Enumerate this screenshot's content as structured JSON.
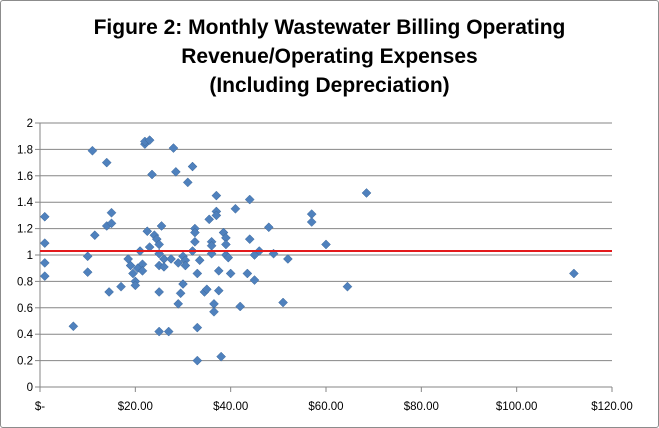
{
  "chart_data": {
    "type": "scatter",
    "title_lines": [
      "Figure 2: Monthly Wastewater Billing Operating",
      "Revenue/Operating Expenses",
      "(Including Depreciation)"
    ],
    "xlabel": "",
    "ylabel": "",
    "xlim": [
      0,
      120
    ],
    "ylim": [
      0,
      2
    ],
    "x_ticks": [
      0,
      20,
      40,
      60,
      80,
      100,
      120
    ],
    "x_tick_labels": [
      "$-",
      "$20.00",
      "$40.00",
      "$60.00",
      "$80.00",
      "$100.00",
      "$120.00"
    ],
    "y_ticks": [
      0,
      0.2,
      0.4,
      0.6,
      0.8,
      1,
      1.2,
      1.4,
      1.6,
      1.8,
      2
    ],
    "y_tick_labels": [
      "0",
      "0.2",
      "0.4",
      "0.6",
      "0.8",
      "1",
      "1.2",
      "1.4",
      "1.6",
      "1.8",
      "2"
    ],
    "grid": "horizontal",
    "marker_color": "#4f81bd",
    "reference_line": {
      "y": 1.03,
      "color": "#e31a1c"
    },
    "points": [
      [
        1,
        1.29
      ],
      [
        1,
        1.09
      ],
      [
        1,
        0.94
      ],
      [
        1,
        0.84
      ],
      [
        7,
        0.46
      ],
      [
        10,
        0.99
      ],
      [
        10,
        0.87
      ],
      [
        11,
        1.79
      ],
      [
        11.5,
        1.15
      ],
      [
        14,
        1.7
      ],
      [
        14,
        1.22
      ],
      [
        14.5,
        0.72
      ],
      [
        15,
        1.32
      ],
      [
        15,
        1.24
      ],
      [
        17,
        0.76
      ],
      [
        18.5,
        0.97
      ],
      [
        19,
        0.92
      ],
      [
        19.5,
        0.86
      ],
      [
        20,
        0.8
      ],
      [
        20,
        0.77
      ],
      [
        20.5,
        0.9
      ],
      [
        21,
        1.03
      ],
      [
        21.5,
        0.93
      ],
      [
        21.5,
        0.88
      ],
      [
        22,
        1.84
      ],
      [
        22,
        1.86
      ],
      [
        23,
        1.87
      ],
      [
        22.5,
        1.18
      ],
      [
        23,
        1.06
      ],
      [
        23.5,
        1.61
      ],
      [
        24,
        1.15
      ],
      [
        24.5,
        1.12
      ],
      [
        25,
        1.08
      ],
      [
        25,
        1.01
      ],
      [
        25,
        0.92
      ],
      [
        25,
        0.72
      ],
      [
        25,
        0.42
      ],
      [
        25.5,
        1.22
      ],
      [
        26,
        0.97
      ],
      [
        26,
        0.91
      ],
      [
        27,
        0.42
      ],
      [
        27.5,
        0.97
      ],
      [
        28,
        1.81
      ],
      [
        28.5,
        1.63
      ],
      [
        29,
        0.94
      ],
      [
        29,
        0.63
      ],
      [
        29.5,
        0.71
      ],
      [
        30,
        0.78
      ],
      [
        30,
        0.99
      ],
      [
        30.5,
        0.96
      ],
      [
        30.5,
        0.92
      ],
      [
        31,
        1.55
      ],
      [
        32,
        1.67
      ],
      [
        32,
        1.03
      ],
      [
        32.5,
        1.2
      ],
      [
        32.5,
        1.17
      ],
      [
        32.5,
        1.1
      ],
      [
        33,
        0.86
      ],
      [
        33,
        0.45
      ],
      [
        33,
        0.2
      ],
      [
        33.5,
        0.96
      ],
      [
        34.5,
        0.72
      ],
      [
        35,
        0.74
      ],
      [
        35.5,
        1.27
      ],
      [
        36,
        1.1
      ],
      [
        36,
        1.07
      ],
      [
        36,
        1.01
      ],
      [
        36.5,
        0.63
      ],
      [
        36.5,
        0.57
      ],
      [
        37,
        1.45
      ],
      [
        37,
        1.33
      ],
      [
        37,
        1.3
      ],
      [
        37.5,
        0.88
      ],
      [
        37.5,
        0.73
      ],
      [
        38,
        0.23
      ],
      [
        38.5,
        1.17
      ],
      [
        39,
        1.13
      ],
      [
        39,
        1.08
      ],
      [
        39,
        1.0
      ],
      [
        39.5,
        0.98
      ],
      [
        40,
        0.86
      ],
      [
        41,
        1.35
      ],
      [
        42,
        0.61
      ],
      [
        43.5,
        0.86
      ],
      [
        44,
        1.42
      ],
      [
        44,
        1.12
      ],
      [
        45,
        1.0
      ],
      [
        45,
        0.81
      ],
      [
        46,
        1.03
      ],
      [
        48,
        1.21
      ],
      [
        49,
        1.01
      ],
      [
        51,
        0.64
      ],
      [
        52,
        0.97
      ],
      [
        57,
        1.31
      ],
      [
        57,
        1.25
      ],
      [
        60,
        1.08
      ],
      [
        64.5,
        0.76
      ],
      [
        68.5,
        1.47
      ],
      [
        112,
        0.86
      ]
    ]
  }
}
